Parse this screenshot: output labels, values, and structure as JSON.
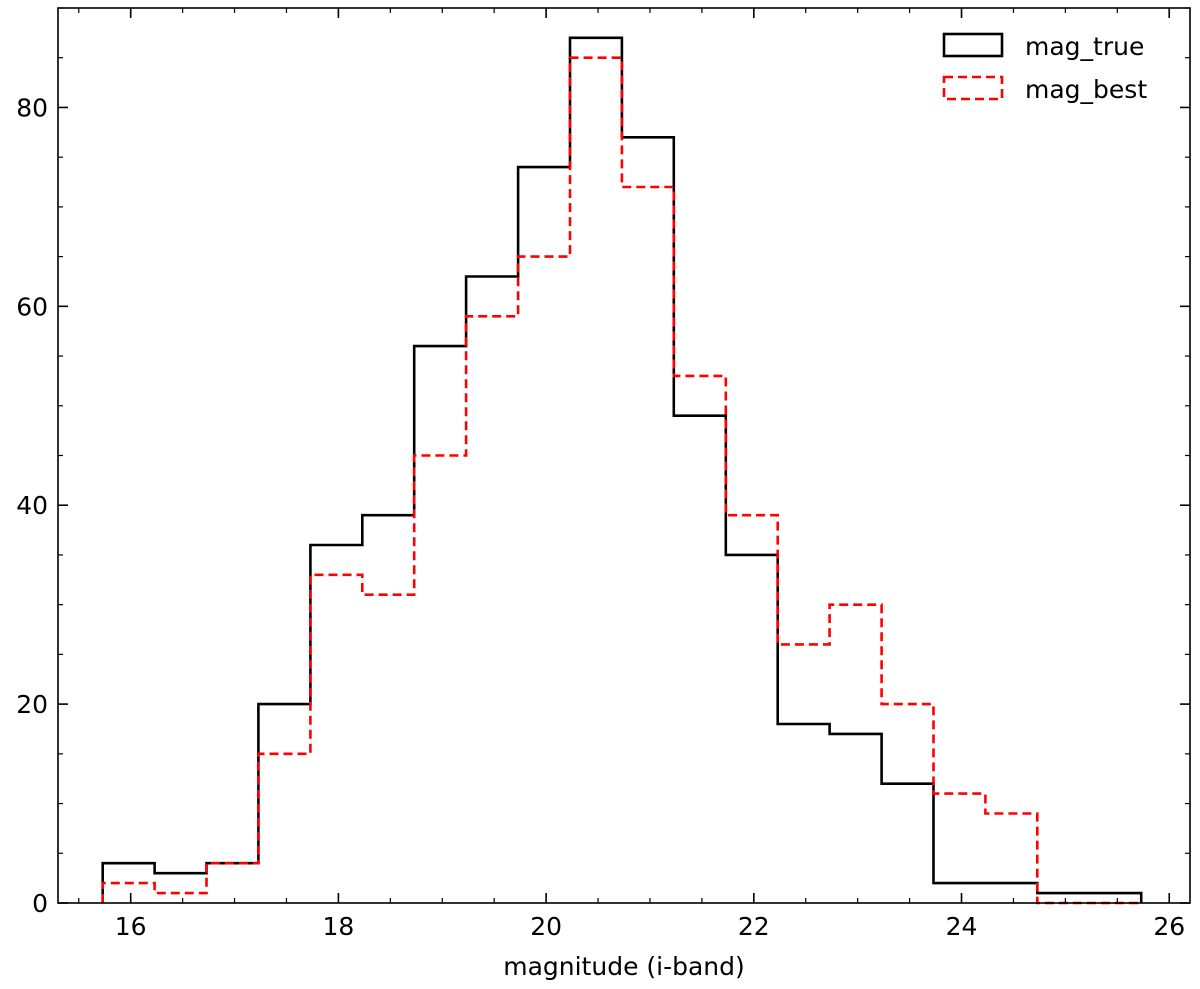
{
  "chart_data": {
    "type": "histogram",
    "title": "",
    "xlabel": "magnitude (i-band)",
    "ylabel": "",
    "xlim": [
      15.3,
      26.2
    ],
    "ylim": [
      0,
      90
    ],
    "grid": false,
    "legend_position": "top-right",
    "x_ticks": [
      16,
      18,
      20,
      22,
      24,
      26
    ],
    "y_ticks": [
      0,
      20,
      40,
      60,
      80
    ],
    "bin_edges": [
      15.73,
      16.23,
      16.73,
      17.23,
      17.73,
      18.23,
      18.73,
      19.23,
      19.73,
      20.23,
      20.73,
      21.23,
      21.73,
      22.23,
      22.73,
      23.23,
      23.73,
      24.23,
      24.73,
      25.23,
      25.73
    ],
    "series": [
      {
        "name": "mag_true",
        "color": "#000000",
        "line_style": "solid",
        "counts": [
          4,
          3,
          4,
          20,
          36,
          39,
          56,
          63,
          74,
          87,
          77,
          49,
          35,
          18,
          17,
          12,
          2,
          2,
          1,
          1
        ]
      },
      {
        "name": "mag_best",
        "color": "#ff0000",
        "line_style": "dashed",
        "counts": [
          2,
          1,
          4,
          15,
          33,
          31,
          45,
          59,
          65,
          85,
          72,
          53,
          39,
          26,
          30,
          20,
          11,
          9,
          0,
          0
        ]
      }
    ]
  }
}
